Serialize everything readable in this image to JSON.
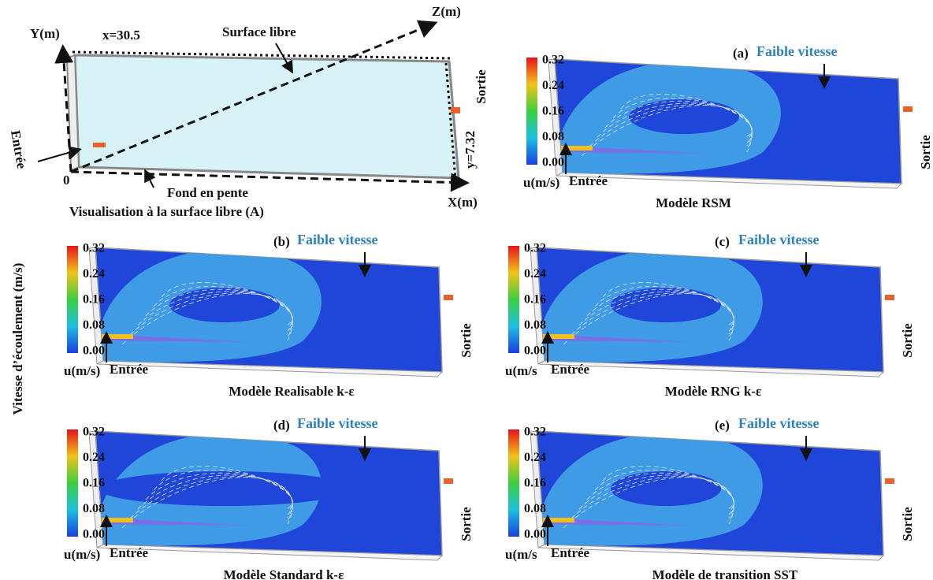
{
  "side_label": "Vitesse d’écoulement (m/s)",
  "schematic": {
    "y_axis": "Y(m)",
    "length": "x=30.5",
    "surface": "Surface libre",
    "z_axis": "Z(m)",
    "outlet": "Sortie",
    "inlet": "Entrée",
    "width": "y=7.32",
    "origin": "0",
    "bottom": "Fond en pente",
    "x_axis": "X(m)",
    "caption": "Visualisation à la surface libre (A)"
  },
  "panels": [
    {
      "letter": "(a)",
      "note": "Faible vitesse",
      "scale": [
        "0.32",
        "0.24",
        "0.16",
        "0.08",
        "0.00"
      ],
      "unit": "u(m/s)",
      "inlet": "Entrée",
      "outlet": "Sortie",
      "caption": "Modèle RSM"
    },
    {
      "letter": "(b)",
      "note": "Faible vitesse",
      "scale": [
        "0.32",
        "0.24",
        "0.16",
        "0.08",
        "0.00"
      ],
      "unit": "u(m/s)",
      "inlet": "Entrée",
      "outlet": "Sortie",
      "caption": "Modèle Realisable k-ε"
    },
    {
      "letter": "(c)",
      "note": "Faible vitesse",
      "scale": [
        "0.32",
        "0.24",
        "0.16",
        "0.08",
        "0.00"
      ],
      "unit": "u(m/s",
      "inlet": "Entrée",
      "outlet": "Sortie",
      "caption": "Modèle RNG k-ε"
    },
    {
      "letter": "(d)",
      "note": "Faible vitesse",
      "scale": [
        "0.32",
        "0.24",
        "0.16",
        "0.08",
        "0.00"
      ],
      "unit": "u(m/s)",
      "inlet": "Entrée",
      "outlet": "Sortie",
      "caption": "Modèle Standard k-ε"
    },
    {
      "letter": "(e)",
      "note": "Faible vitesse",
      "scale": [
        "0.32",
        "0.24",
        "0.16",
        "0.08",
        "0.00"
      ],
      "unit": "u(m/s",
      "inlet": "Entrée",
      "outlet": "Sortie",
      "caption": "Modèle de transition SST"
    }
  ]
}
